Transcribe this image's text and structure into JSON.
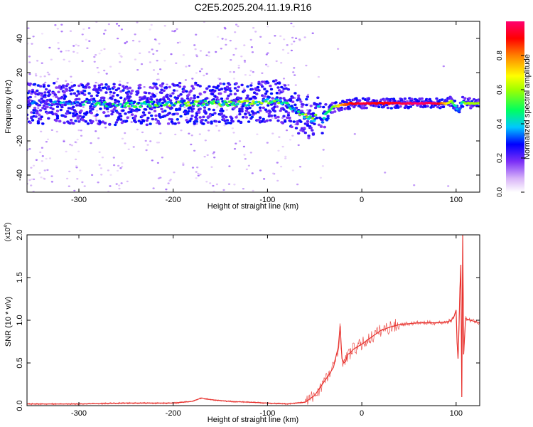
{
  "title": "C2E5.2025.204.11.19.R16",
  "colors": {
    "snr_line": "#e8322e",
    "spectrum_low": "#e9dbf7",
    "spectrum_mid": "#5a12e0",
    "spectrum_peak": "#e8102a"
  },
  "chart_data": [
    {
      "type": "heatmap",
      "title": "C2E5.2025.204.11.19.R16",
      "xlabel": "Height of straight line (km)",
      "ylabel": "Frequency (Hz)",
      "xlim": [
        -355,
        125
      ],
      "ylim": [
        -50,
        50
      ],
      "x_ticks": [
        -300,
        -200,
        -100,
        0,
        100
      ],
      "y_ticks": [
        -40,
        -20,
        0,
        20,
        40
      ],
      "grid": false,
      "colorbar": {
        "label": "Normalized spectral amplitude",
        "range": [
          0.0,
          1.0
        ],
        "ticks": [
          "0.0",
          "0.2",
          "0.4",
          "0.6",
          "0.8"
        ],
        "colormap": [
          "#ffffff",
          "#d8b4f8",
          "#7b2ff7",
          "#0000ff",
          "#00e5ff",
          "#00ff40",
          "#ffff00",
          "#ff8000",
          "#ff0000",
          "#ff0080"
        ]
      },
      "ridge": {
        "x": [
          -355,
          -300,
          -250,
          -200,
          -150,
          -120,
          -100,
          -90,
          -80,
          -70,
          -60,
          -55,
          -50,
          -47,
          -45,
          -42,
          -38,
          -30,
          -20,
          -10,
          0,
          20,
          40,
          60,
          80,
          90,
          95,
          100,
          103,
          106,
          110,
          125
        ],
        "frequency": [
          2,
          2,
          1,
          2,
          2,
          2,
          3,
          4,
          1,
          -3,
          -5,
          -7,
          -8,
          3,
          -5,
          -9,
          -4,
          0,
          1,
          2,
          2,
          2,
          2,
          2,
          2,
          2,
          3,
          0,
          -3,
          3,
          2,
          2
        ],
        "amplitude": [
          0.25,
          0.35,
          0.4,
          0.45,
          0.45,
          0.5,
          0.5,
          0.5,
          0.4,
          0.45,
          0.5,
          0.5,
          0.5,
          0.3,
          0.35,
          0.4,
          0.45,
          0.55,
          0.8,
          0.9,
          0.95,
          0.9,
          0.95,
          1.0,
          0.95,
          0.7,
          0.6,
          0.4,
          0.3,
          0.4,
          0.6,
          0.6
        ]
      }
    },
    {
      "type": "line",
      "xlabel": "Height of straight line (km)",
      "ylabel": "SNR (10 * v/v)",
      "y_multiplier": "(x10^4)",
      "xlim": [
        -355,
        125
      ],
      "ylim": [
        0.0,
        2.0
      ],
      "x_ticks": [
        -300,
        -200,
        -100,
        0,
        100
      ],
      "y_ticks": [
        "0.0",
        "0.5",
        "1.0",
        "1.5",
        "2.0"
      ],
      "grid": false,
      "series": [
        {
          "x": [
            -355,
            -300,
            -250,
            -200,
            -180,
            -170,
            -160,
            -150,
            -140,
            -120,
            -100,
            -80,
            -70,
            -60,
            -55,
            -50,
            -45,
            -40,
            -35,
            -30,
            -28,
            -25,
            -23,
            -21,
            -19,
            -17,
            -15,
            -12,
            -9,
            -6,
            -3,
            0,
            5,
            10,
            20,
            30,
            40,
            50,
            60,
            70,
            80,
            90,
            95,
            98,
            100,
            101,
            102,
            103,
            104,
            105,
            106,
            107,
            108,
            110,
            115,
            125
          ],
          "values": [
            0.02,
            0.02,
            0.03,
            0.03,
            0.05,
            0.09,
            0.07,
            0.06,
            0.05,
            0.04,
            0.03,
            0.02,
            0.03,
            0.04,
            0.08,
            0.12,
            0.2,
            0.28,
            0.36,
            0.45,
            0.55,
            0.68,
            0.93,
            0.55,
            0.5,
            0.52,
            0.6,
            0.62,
            0.66,
            0.68,
            0.7,
            0.72,
            0.76,
            0.8,
            0.88,
            0.92,
            0.95,
            0.96,
            0.97,
            0.97,
            0.97,
            0.98,
            1.0,
            1.05,
            1.12,
            0.75,
            0.55,
            0.9,
            1.35,
            1.65,
            0.1,
            2.0,
            0.6,
            1.02,
            1.0,
            0.97
          ]
        }
      ]
    }
  ]
}
